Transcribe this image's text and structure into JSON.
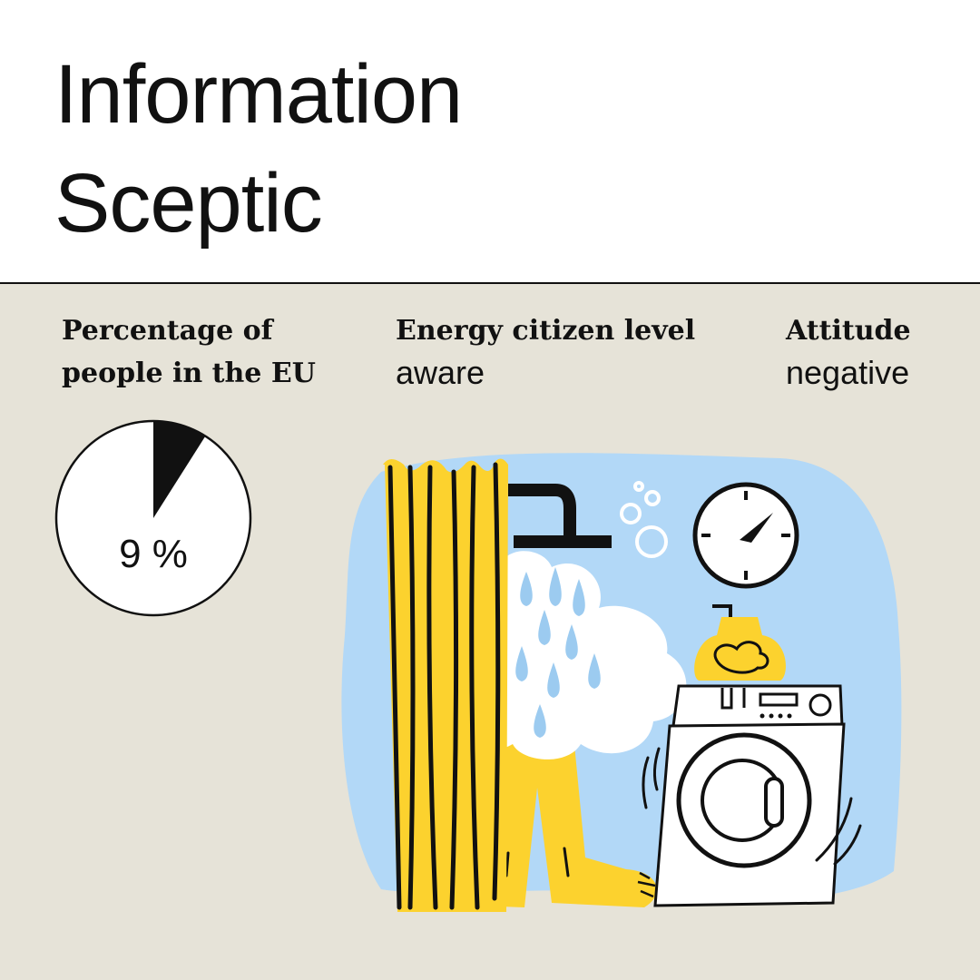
{
  "header": {
    "title_line1": "Information",
    "title_line2": "Sceptic"
  },
  "stats": {
    "share_label_line1": "Percentage of",
    "share_label_line2": "people in the EU",
    "share_value": 9,
    "share_text": "9 %",
    "level_label": "Energy citizen level",
    "level_value": "aware",
    "attitude_label": "Attitude",
    "attitude_value": "negative"
  },
  "colors": {
    "header_bg": "#ffffff",
    "panel_bg": "#e6e3d8",
    "ink": "#111111",
    "yellow": "#fcd22e",
    "sky": "#b2d8f7",
    "drop": "#9ccbf0",
    "cloud": "#ffffff"
  },
  "illustration": {
    "icon": "shower-and-washing-machine-illustration"
  }
}
